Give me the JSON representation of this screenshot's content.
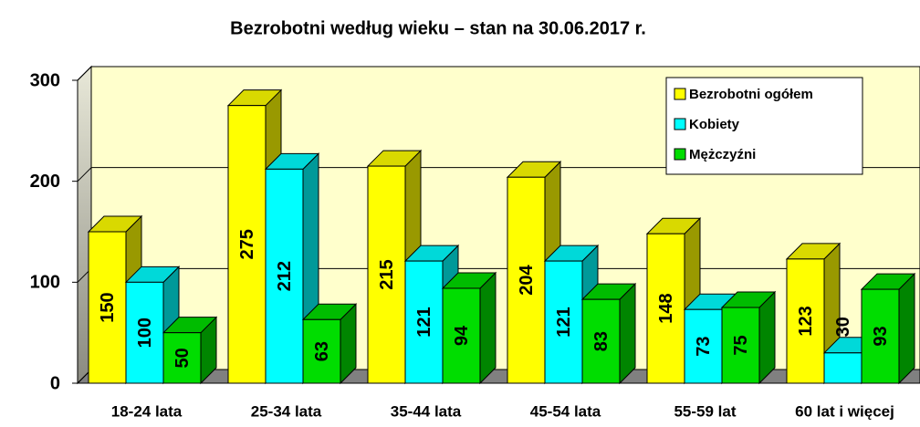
{
  "chart_data": {
    "type": "bar3d",
    "title": "Bezrobotni według wieku – stan na 30.06.2017 r.",
    "categories": [
      "18-24 lata",
      "25-34 lata",
      "35-44 lata",
      "45-54 lata",
      "55-59 lat",
      "60 lat i więcej"
    ],
    "series": [
      {
        "name": "Bezrobotni ogółem",
        "color": "#ffff00",
        "values": [
          150,
          275,
          215,
          204,
          148,
          123
        ]
      },
      {
        "name": "Kobiety",
        "color": "#00ffff",
        "values": [
          100,
          212,
          121,
          121,
          73,
          30
        ]
      },
      {
        "name": "Mężczyźni",
        "color": "#00dd00",
        "values": [
          50,
          63,
          94,
          83,
          75,
          93
        ]
      }
    ],
    "ylim": [
      0,
      300
    ],
    "yticks": [
      0,
      100,
      200,
      300
    ],
    "grid": true,
    "legend": "top-right"
  }
}
